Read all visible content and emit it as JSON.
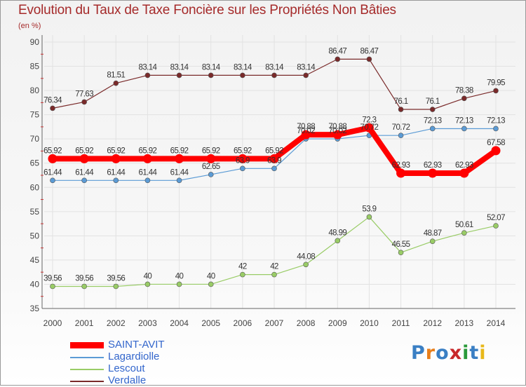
{
  "title": "Evolution du Taux de Taxe Foncière sur les Propriétés Non Bâties",
  "unit": "(en %)",
  "logo": "Proxiti",
  "chart_data": {
    "type": "line",
    "title": "Evolution du Taux de Taxe Foncière sur les Propriétés Non Bâties",
    "ylabel": "(en %)",
    "xlabel": "",
    "ylim": [
      35,
      90
    ],
    "yticks": [
      35,
      40,
      45,
      50,
      55,
      60,
      65,
      70,
      75,
      80,
      85,
      90
    ],
    "categories": [
      "2000",
      "2001",
      "2002",
      "2003",
      "2004",
      "2005",
      "2006",
      "2007",
      "2008",
      "2009",
      "2010",
      "2011",
      "2012",
      "2013",
      "2014"
    ],
    "grid": true,
    "legend": "bottom-left",
    "series": [
      {
        "name": "SAINT-AVIT",
        "color": "#ff0000",
        "values": [
          65.92,
          65.92,
          65.92,
          65.92,
          65.92,
          65.92,
          65.92,
          65.92,
          70.88,
          70.88,
          72.3,
          62.93,
          62.93,
          62.93,
          67.58
        ],
        "labels": [
          "65.92",
          "65.92",
          "65.92",
          "65.92",
          "65.92",
          "65.92",
          "65.92",
          "65.92",
          "70.88",
          "70.88",
          "72.3",
          "62.93",
          "62.93",
          "62.93",
          "67.58"
        ]
      },
      {
        "name": "Lagardiolle",
        "color": "#5b9bd5",
        "values": [
          61.44,
          61.44,
          61.44,
          61.44,
          61.44,
          62.65,
          63.9,
          63.9,
          70.02,
          70.02,
          70.72,
          70.72,
          72.13,
          72.13,
          72.13
        ],
        "labels": [
          "61.44",
          "61.44",
          "61.44",
          "61.44",
          "61.44",
          "62.65",
          "63.9",
          "63.9",
          "70.02",
          "70.02",
          "70.72",
          "70.72",
          "72.13",
          "72.13",
          "72.13"
        ]
      },
      {
        "name": "Lescout",
        "color": "#99cc66",
        "values": [
          39.56,
          39.56,
          39.56,
          40,
          40,
          40,
          42,
          42,
          44.08,
          48.99,
          53.9,
          46.55,
          48.87,
          50.61,
          52.07
        ],
        "labels": [
          "39.56",
          "39.56",
          "39.56",
          "40",
          "40",
          "40",
          "42",
          "42",
          "44.08",
          "48.99",
          "53.9",
          "46.55",
          "48.87",
          "50.61",
          "52.07"
        ]
      },
      {
        "name": "Verdalle",
        "color": "#7a2a2a",
        "values": [
          76.34,
          77.63,
          81.51,
          83.14,
          83.14,
          83.14,
          83.14,
          83.14,
          83.14,
          86.47,
          86.47,
          76.1,
          76.1,
          78.38,
          79.95
        ],
        "labels": [
          "76.34",
          "77.63",
          "81.51",
          "83.14",
          "83.14",
          "83.14",
          "83.14",
          "83.14",
          "83.14",
          "86.47",
          "86.47",
          "76.1",
          "76.1",
          "78.38",
          "79.95"
        ]
      }
    ]
  }
}
